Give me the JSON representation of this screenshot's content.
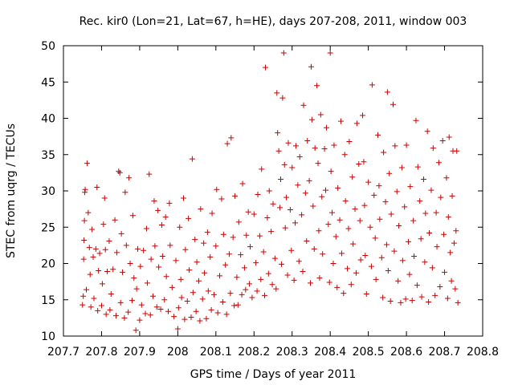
{
  "chart_data": {
    "type": "scatter",
    "title": "Rec. kir0 (Lon=21, Lat=67, h=HE), days 207-208, 2011, window 003",
    "xlabel": "GPS time / Days of year 2011",
    "ylabel": "STEC from uqrg / TECUs",
    "xlim": [
      207.7,
      208.8
    ],
    "ylim": [
      10,
      50
    ],
    "x_ticks": [
      "207.7",
      "207.8",
      "207.9",
      "208",
      "208.1",
      "208.2",
      "208.3",
      "208.4",
      "208.5",
      "208.6",
      "208.7",
      "208.8"
    ],
    "y_ticks": [
      "10",
      "15",
      "20",
      "25",
      "30",
      "35",
      "40",
      "45",
      "50"
    ],
    "grid": false,
    "marker": "+",
    "color": "#cc0000",
    "points": [
      [
        207.75,
        14.3
      ],
      [
        207.752,
        15.5
      ],
      [
        207.753,
        20.6
      ],
      [
        207.754,
        23.2
      ],
      [
        207.755,
        25.9
      ],
      [
        207.756,
        29.8
      ],
      [
        207.757,
        30.2
      ],
      [
        207.76,
        16.4
      ],
      [
        207.762,
        33.8
      ],
      [
        207.765,
        27.0
      ],
      [
        207.768,
        22.2
      ],
      [
        207.77,
        18.5
      ],
      [
        207.772,
        14.0
      ],
      [
        207.775,
        24.7
      ],
      [
        207.778,
        20.9
      ],
      [
        207.78,
        15.2
      ],
      [
        207.785,
        22.0
      ],
      [
        207.788,
        30.5
      ],
      [
        207.79,
        13.5
      ],
      [
        207.792,
        19.0
      ],
      [
        207.795,
        21.4
      ],
      [
        207.8,
        14.2
      ],
      [
        207.802,
        17.2
      ],
      [
        207.805,
        25.4
      ],
      [
        207.808,
        29.0
      ],
      [
        207.81,
        21.9
      ],
      [
        207.812,
        13.0
      ],
      [
        207.815,
        18.9
      ],
      [
        207.82,
        23.1
      ],
      [
        207.822,
        13.6
      ],
      [
        207.825,
        15.8
      ],
      [
        207.83,
        19.2
      ],
      [
        207.835,
        26.0
      ],
      [
        207.838,
        12.8
      ],
      [
        207.84,
        21.5
      ],
      [
        207.845,
        32.7
      ],
      [
        207.848,
        32.5
      ],
      [
        207.85,
        14.6
      ],
      [
        207.852,
        24.1
      ],
      [
        207.855,
        18.8
      ],
      [
        207.86,
        12.5
      ],
      [
        207.862,
        29.8
      ],
      [
        207.865,
        22.5
      ],
      [
        207.87,
        13.3
      ],
      [
        207.872,
        31.8
      ],
      [
        207.875,
        20.0
      ],
      [
        207.88,
        14.9
      ],
      [
        207.882,
        26.6
      ],
      [
        207.885,
        18.0
      ],
      [
        207.89,
        10.8
      ],
      [
        207.892,
        16.5
      ],
      [
        207.895,
        22.0
      ],
      [
        207.9,
        12.2
      ],
      [
        207.902,
        19.6
      ],
      [
        207.905,
        14.3
      ],
      [
        207.91,
        21.8
      ],
      [
        207.915,
        13.1
      ],
      [
        207.918,
        24.8
      ],
      [
        207.92,
        17.3
      ],
      [
        207.925,
        32.3
      ],
      [
        207.928,
        12.9
      ],
      [
        207.93,
        20.6
      ],
      [
        207.935,
        15.5
      ],
      [
        207.938,
        28.6
      ],
      [
        207.94,
        22.4
      ],
      [
        207.945,
        14.0
      ],
      [
        207.948,
        27.3
      ],
      [
        207.95,
        19.5
      ],
      [
        207.955,
        13.7
      ],
      [
        207.958,
        25.3
      ],
      [
        207.96,
        21.0
      ],
      [
        207.965,
        15.0
      ],
      [
        207.968,
        26.4
      ],
      [
        207.97,
        18.2
      ],
      [
        207.975,
        13.4
      ],
      [
        207.978,
        28.3
      ],
      [
        207.98,
        22.5
      ],
      [
        207.985,
        16.7
      ],
      [
        207.99,
        12.7
      ],
      [
        207.995,
        20.4
      ],
      [
        208.0,
        11.0
      ],
      [
        208.002,
        13.9
      ],
      [
        208.005,
        25.0
      ],
      [
        208.008,
        17.8
      ],
      [
        208.01,
        15.3
      ],
      [
        208.015,
        29.0
      ],
      [
        208.018,
        12.3
      ],
      [
        208.02,
        21.9
      ],
      [
        208.025,
        14.8
      ],
      [
        208.028,
        26.2
      ],
      [
        208.03,
        19.1
      ],
      [
        208.035,
        12.6
      ],
      [
        208.038,
        34.4
      ],
      [
        208.04,
        16.0
      ],
      [
        208.045,
        23.3
      ],
      [
        208.048,
        13.4
      ],
      [
        208.05,
        20.2
      ],
      [
        208.055,
        17.6
      ],
      [
        208.058,
        12.1
      ],
      [
        208.06,
        27.5
      ],
      [
        208.065,
        15.1
      ],
      [
        208.068,
        22.8
      ],
      [
        208.07,
        18.7
      ],
      [
        208.075,
        12.4
      ],
      [
        208.078,
        24.3
      ],
      [
        208.08,
        16.2
      ],
      [
        208.085,
        20.9
      ],
      [
        208.088,
        13.6
      ],
      [
        208.09,
        26.9
      ],
      [
        208.095,
        15.7
      ],
      [
        208.1,
        22.4
      ],
      [
        208.102,
        30.2
      ],
      [
        208.105,
        13.2
      ],
      [
        208.11,
        18.3
      ],
      [
        208.115,
        28.9
      ],
      [
        208.118,
        14.7
      ],
      [
        208.12,
        24.0
      ],
      [
        208.125,
        19.8
      ],
      [
        208.128,
        13.0
      ],
      [
        208.13,
        36.5
      ],
      [
        208.135,
        21.3
      ],
      [
        208.138,
        15.9
      ],
      [
        208.14,
        37.3
      ],
      [
        208.145,
        23.6
      ],
      [
        208.148,
        14.2
      ],
      [
        208.15,
        29.3
      ],
      [
        208.155,
        18.1
      ],
      [
        208.158,
        14.3
      ],
      [
        208.16,
        25.7
      ],
      [
        208.165,
        21.2
      ],
      [
        208.168,
        15.7
      ],
      [
        208.17,
        31.0
      ],
      [
        208.175,
        19.4
      ],
      [
        208.178,
        16.4
      ],
      [
        208.18,
        23.9
      ],
      [
        208.185,
        27.1
      ],
      [
        208.188,
        17.2
      ],
      [
        208.19,
        22.3
      ],
      [
        208.195,
        15.3
      ],
      [
        208.2,
        26.8
      ],
      [
        208.205,
        20.1
      ],
      [
        208.208,
        16.2
      ],
      [
        208.21,
        29.5
      ],
      [
        208.215,
        23.8
      ],
      [
        208.218,
        17.8
      ],
      [
        208.22,
        33.0
      ],
      [
        208.225,
        21.6
      ],
      [
        208.228,
        15.6
      ],
      [
        208.23,
        47.0
      ],
      [
        208.235,
        26.3
      ],
      [
        208.238,
        18.6
      ],
      [
        208.24,
        30.0
      ],
      [
        208.245,
        24.4
      ],
      [
        208.248,
        17.1
      ],
      [
        208.25,
        28.2
      ],
      [
        208.255,
        20.7
      ],
      [
        208.258,
        16.5
      ],
      [
        208.26,
        43.5
      ],
      [
        208.262,
        38.0
      ],
      [
        208.265,
        35.5
      ],
      [
        208.268,
        27.7
      ],
      [
        208.27,
        31.6
      ],
      [
        208.272,
        19.9
      ],
      [
        208.275,
        42.8
      ],
      [
        208.278,
        49.0
      ],
      [
        208.28,
        33.6
      ],
      [
        208.282,
        24.9
      ],
      [
        208.285,
        29.1
      ],
      [
        208.288,
        18.4
      ],
      [
        208.29,
        36.6
      ],
      [
        208.295,
        27.4
      ],
      [
        208.298,
        21.8
      ],
      [
        208.3,
        33.2
      ],
      [
        208.305,
        17.7
      ],
      [
        208.308,
        25.6
      ],
      [
        208.31,
        36.2
      ],
      [
        208.315,
        30.8
      ],
      [
        208.318,
        20.3
      ],
      [
        208.32,
        34.7
      ],
      [
        208.325,
        26.7
      ],
      [
        208.328,
        18.9
      ],
      [
        208.33,
        41.8
      ],
      [
        208.335,
        29.7
      ],
      [
        208.338,
        23.1
      ],
      [
        208.34,
        36.9
      ],
      [
        208.345,
        31.4
      ],
      [
        208.348,
        17.3
      ],
      [
        208.35,
        47.1
      ],
      [
        208.352,
        39.8
      ],
      [
        208.355,
        27.9
      ],
      [
        208.358,
        22.0
      ],
      [
        208.36,
        35.9
      ],
      [
        208.365,
        44.5
      ],
      [
        208.368,
        33.8
      ],
      [
        208.37,
        24.5
      ],
      [
        208.372,
        18.0
      ],
      [
        208.375,
        40.5
      ],
      [
        208.378,
        29.2
      ],
      [
        208.38,
        21.3
      ],
      [
        208.385,
        35.8
      ],
      [
        208.388,
        30.1
      ],
      [
        208.39,
        38.7
      ],
      [
        208.395,
        25.4
      ],
      [
        208.398,
        17.4
      ],
      [
        208.4,
        49.0
      ],
      [
        208.402,
        32.7
      ],
      [
        208.405,
        27.0
      ],
      [
        208.408,
        20.0
      ],
      [
        208.41,
        36.3
      ],
      [
        208.415,
        23.7
      ],
      [
        208.418,
        16.7
      ],
      [
        208.42,
        30.4
      ],
      [
        208.425,
        26.0
      ],
      [
        208.428,
        39.6
      ],
      [
        208.43,
        21.4
      ],
      [
        208.435,
        15.9
      ],
      [
        208.438,
        35.0
      ],
      [
        208.44,
        28.6
      ],
      [
        208.445,
        19.3
      ],
      [
        208.448,
        24.8
      ],
      [
        208.45,
        36.8
      ],
      [
        208.455,
        17.1
      ],
      [
        208.458,
        31.9
      ],
      [
        208.46,
        22.7
      ],
      [
        208.465,
        27.5
      ],
      [
        208.468,
        18.7
      ],
      [
        208.47,
        39.3
      ],
      [
        208.475,
        33.7
      ],
      [
        208.478,
        25.9
      ],
      [
        208.48,
        20.5
      ],
      [
        208.485,
        40.4
      ],
      [
        208.488,
        34.0
      ],
      [
        208.49,
        28.0
      ],
      [
        208.492,
        21.1
      ],
      [
        208.495,
        15.8
      ],
      [
        208.5,
        31.2
      ],
      [
        208.505,
        25.0
      ],
      [
        208.508,
        19.6
      ],
      [
        208.51,
        44.6
      ],
      [
        208.515,
        29.4
      ],
      [
        208.518,
        23.5
      ],
      [
        208.52,
        17.8
      ],
      [
        208.525,
        37.7
      ],
      [
        208.528,
        30.7
      ],
      [
        208.53,
        26.1
      ],
      [
        208.535,
        20.8
      ],
      [
        208.538,
        15.3
      ],
      [
        208.54,
        35.3
      ],
      [
        208.545,
        28.5
      ],
      [
        208.548,
        22.6
      ],
      [
        208.55,
        43.6
      ],
      [
        208.552,
        19.0
      ],
      [
        208.555,
        32.4
      ],
      [
        208.558,
        14.8
      ],
      [
        208.56,
        26.8
      ],
      [
        208.565,
        41.9
      ],
      [
        208.568,
        21.7
      ],
      [
        208.57,
        36.2
      ],
      [
        208.575,
        29.9
      ],
      [
        208.578,
        17.6
      ],
      [
        208.58,
        25.2
      ],
      [
        208.585,
        14.6
      ],
      [
        208.588,
        33.2
      ],
      [
        208.59,
        20.4
      ],
      [
        208.595,
        27.8
      ],
      [
        208.598,
        15.1
      ],
      [
        208.6,
        36.3
      ],
      [
        208.605,
        23.0
      ],
      [
        208.608,
        18.5
      ],
      [
        208.61,
        30.6
      ],
      [
        208.615,
        14.9
      ],
      [
        208.618,
        25.9
      ],
      [
        208.62,
        21.0
      ],
      [
        208.625,
        39.7
      ],
      [
        208.628,
        17.0
      ],
      [
        208.63,
        33.3
      ],
      [
        208.635,
        28.6
      ],
      [
        208.638,
        23.4
      ],
      [
        208.64,
        15.4
      ],
      [
        208.645,
        31.6
      ],
      [
        208.648,
        20.2
      ],
      [
        208.65,
        26.9
      ],
      [
        208.655,
        38.2
      ],
      [
        208.658,
        14.7
      ],
      [
        208.66,
        24.2
      ],
      [
        208.665,
        30.1
      ],
      [
        208.668,
        19.4
      ],
      [
        208.67,
        35.9
      ],
      [
        208.675,
        15.6
      ],
      [
        208.678,
        27.0
      ],
      [
        208.68,
        22.3
      ],
      [
        208.685,
        33.9
      ],
      [
        208.688,
        16.8
      ],
      [
        208.69,
        29.1
      ],
      [
        208.695,
        36.9
      ],
      [
        208.698,
        24.0
      ],
      [
        208.7,
        18.8
      ],
      [
        208.705,
        31.8
      ],
      [
        208.708,
        15.2
      ],
      [
        208.71,
        26.4
      ],
      [
        208.712,
        37.4
      ],
      [
        208.715,
        21.5
      ],
      [
        208.718,
        17.6
      ],
      [
        208.72,
        29.3
      ],
      [
        208.722,
        35.5
      ],
      [
        208.725,
        22.8
      ],
      [
        208.728,
        16.5
      ],
      [
        208.73,
        24.5
      ],
      [
        208.732,
        35.5
      ],
      [
        208.735,
        14.6
      ]
    ]
  }
}
